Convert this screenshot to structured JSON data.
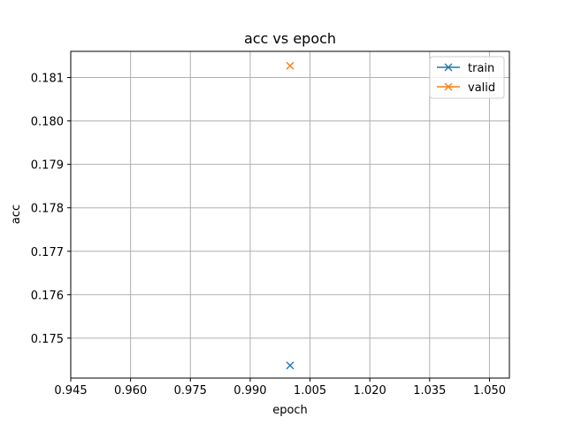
{
  "chart_data": {
    "type": "line",
    "title": "acc vs epoch",
    "xlabel": "epoch",
    "ylabel": "acc",
    "xlim": [
      0.945,
      1.055
    ],
    "ylim": [
      0.17408,
      0.181602
    ],
    "xticks": [
      0.945,
      0.96,
      0.975,
      0.99,
      1.005,
      1.02,
      1.035,
      1.05
    ],
    "xtick_labels": [
      "0.945",
      "0.960",
      "0.975",
      "0.990",
      "1.005",
      "1.020",
      "1.035",
      "1.050"
    ],
    "yticks": [
      0.175,
      0.176,
      0.177,
      0.178,
      0.179,
      0.18,
      0.181
    ],
    "ytick_labels": [
      "0.175",
      "0.176",
      "0.177",
      "0.178",
      "0.179",
      "0.180",
      "0.181"
    ],
    "grid": true,
    "legend_position": "upper right",
    "series": [
      {
        "name": "train",
        "color": "#1f77b4",
        "marker": "x",
        "x": [
          1.0
        ],
        "y": [
          0.17437
        ]
      },
      {
        "name": "valid",
        "color": "#ff7f0e",
        "marker": "x",
        "x": [
          1.0
        ],
        "y": [
          0.18127
        ]
      }
    ]
  }
}
